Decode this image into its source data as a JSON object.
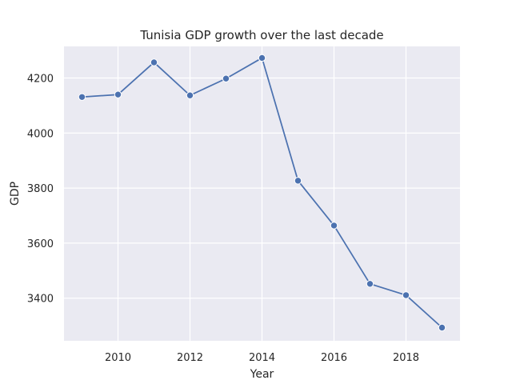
{
  "chart_data": {
    "type": "line",
    "title": "Tunisia GDP growth over the last decade",
    "xlabel": "Year",
    "ylabel": "GDP",
    "x": [
      2009,
      2010,
      2011,
      2012,
      2013,
      2014,
      2015,
      2016,
      2017,
      2018,
      2019
    ],
    "series": [
      {
        "values": [
          4131,
          4140,
          4257,
          4137,
          4198,
          4273,
          3827,
          3664,
          3452,
          3411,
          3293
        ]
      }
    ],
    "xlim": [
      2008.5,
      2019.5
    ],
    "ylim": [
      3245,
      4315
    ],
    "xticks": [
      2010,
      2012,
      2014,
      2016,
      2018
    ],
    "yticks": [
      3400,
      3600,
      3800,
      4000,
      4200
    ],
    "grid": true,
    "line_color": "#4c72b0",
    "background_color": "#eaeaf2",
    "grid_color": "#ffffff"
  }
}
